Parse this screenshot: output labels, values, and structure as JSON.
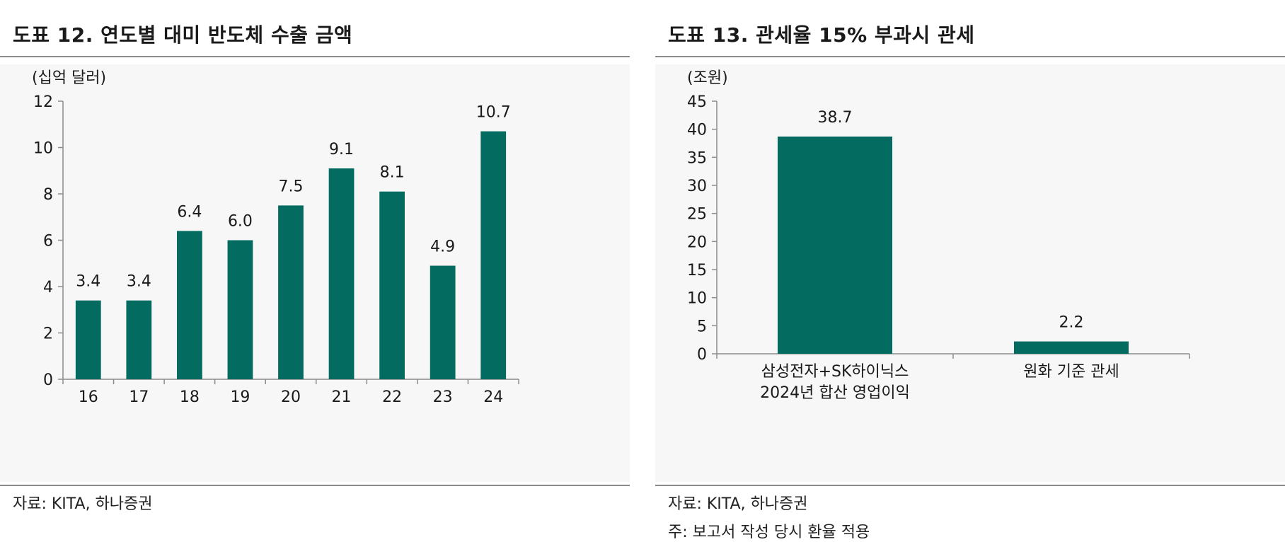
{
  "colors": {
    "bar": "#036b60",
    "axis": "#8c8c8c",
    "text": "#1a1a1a",
    "rule": "#8c8c8c"
  },
  "left": {
    "title": "도표 12. 연도별 대미 반도체 수출 금액",
    "source": "자료: KITA, 하나증권"
  },
  "right": {
    "title": "도표 13. 관세율 15% 부과시 관세",
    "source": "자료: KITA, 하나증권",
    "note": "주: 보고서 작성 당시 환율 적용"
  },
  "chart_data": [
    {
      "type": "bar",
      "title": "도표 12. 연도별 대미 반도체 수출 금액",
      "ylabel": "(십억 달러)",
      "xlabel": "",
      "categories": [
        "16",
        "17",
        "18",
        "19",
        "20",
        "21",
        "22",
        "23",
        "24"
      ],
      "values": [
        3.4,
        3.4,
        6.4,
        6.0,
        7.5,
        9.1,
        8.1,
        4.9,
        10.7
      ],
      "value_labels": [
        "3.4",
        "3.4",
        "6.4",
        "6.0",
        "7.5",
        "9.1",
        "8.1",
        "4.9",
        "10.7"
      ],
      "ylim": [
        0,
        12
      ],
      "yticks": [
        0,
        2,
        4,
        6,
        8,
        10,
        12
      ],
      "ytick_labels": [
        "0",
        "2",
        "4",
        "6",
        "8",
        "10",
        "12"
      ],
      "grid": false,
      "legend": "none"
    },
    {
      "type": "bar",
      "title": "도표 13. 관세율 15% 부과시 관세",
      "ylabel": "(조원)",
      "xlabel": "",
      "categories": [
        [
          "삼성전자+SK하이닉스",
          "2024년 합산 영업이익"
        ],
        [
          "원화 기준 관세"
        ]
      ],
      "values": [
        38.7,
        2.2
      ],
      "value_labels": [
        "38.7",
        "2.2"
      ],
      "ylim": [
        0,
        45
      ],
      "yticks": [
        0,
        5,
        10,
        15,
        20,
        25,
        30,
        35,
        40,
        45
      ],
      "ytick_labels": [
        "0",
        "5",
        "10",
        "15",
        "20",
        "25",
        "30",
        "35",
        "40",
        "45"
      ],
      "grid": false,
      "legend": "none"
    }
  ]
}
